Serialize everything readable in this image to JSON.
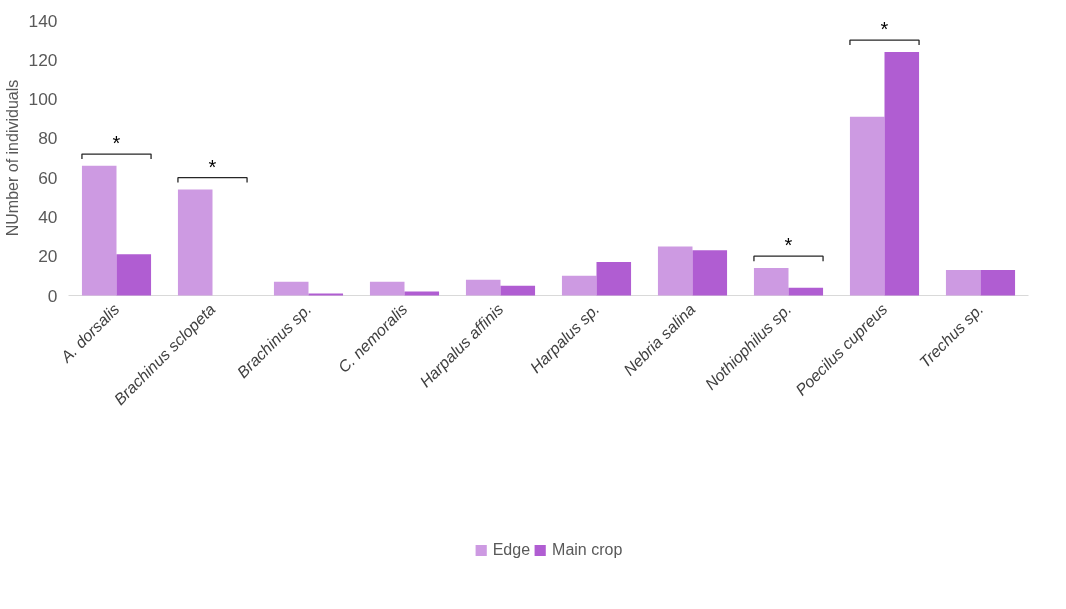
{
  "chart_data": {
    "type": "bar",
    "ylabel": "NUmber of individuals",
    "categories": [
      "A. dorsalis",
      "Brachinus sclopeta",
      "Brachinus sp.",
      "C. nemoralis",
      "Harpalus affinis",
      "Harpalus sp.",
      "Nebria salina",
      "Nothiophilus sp.",
      "Poecilus cupreus",
      "Trechus sp."
    ],
    "series": [
      {
        "name": "Edge",
        "color": "#cd9ae2",
        "values": [
          66,
          54,
          7,
          7,
          8,
          10,
          25,
          14,
          91,
          13
        ]
      },
      {
        "name": "Main crop",
        "color": "#b05dd2",
        "values": [
          21,
          0,
          1,
          2,
          5,
          17,
          23,
          4,
          124,
          13
        ]
      }
    ],
    "ylim": [
      0,
      140
    ],
    "yticks": [
      0,
      20,
      40,
      60,
      80,
      100,
      120,
      140
    ],
    "grid": false,
    "legend": "bottom",
    "annotations": [
      "*",
      "*",
      "*",
      "*"
    ]
  }
}
